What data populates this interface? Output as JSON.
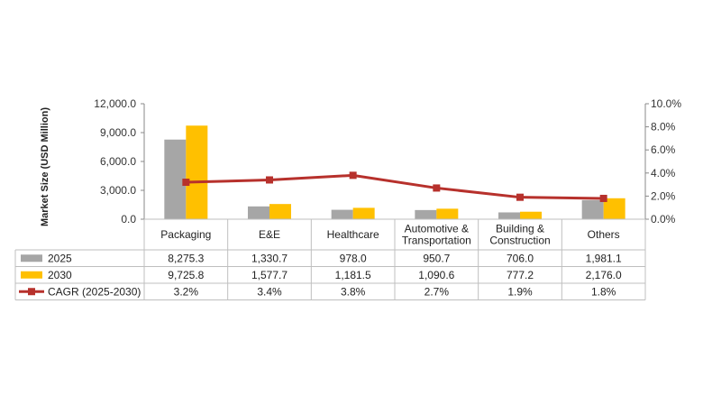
{
  "chart_data": {
    "type": "bar",
    "ylabel": "Market Size (USD Million)",
    "categories": [
      [
        "Packaging"
      ],
      [
        "E&E"
      ],
      [
        "Healthcare"
      ],
      [
        "Automotive &",
        "Transportation"
      ],
      [
        "Building &",
        "Construction"
      ],
      [
        "Others"
      ]
    ],
    "ylim": [
      0,
      12000
    ],
    "y_ticks": [
      "0.0",
      "3,000.0",
      "6,000.0",
      "9,000.0",
      "12,000.0"
    ],
    "y2lim": [
      0,
      10
    ],
    "y2_ticks": [
      "0.0%",
      "2.0%",
      "4.0%",
      "6.0%",
      "8.0%",
      "10.0%"
    ],
    "series": [
      {
        "name": "2025",
        "type": "bar",
        "color": "#a6a6a6",
        "values": [
          8275.3,
          1330.7,
          978.0,
          950.7,
          706.0,
          1981.1
        ],
        "labels": [
          "8,275.3",
          "1,330.7",
          "978.0",
          "950.7",
          "706.0",
          "1,981.1"
        ]
      },
      {
        "name": "2030",
        "type": "bar",
        "color": "#ffc000",
        "values": [
          9725.8,
          1577.7,
          1181.5,
          1090.6,
          777.2,
          2176.0
        ],
        "labels": [
          "9,725.8",
          "1,577.7",
          "1,181.5",
          "1,090.6",
          "777.2",
          "2,176.0"
        ]
      },
      {
        "name": "CAGR (2025-2030)",
        "type": "line",
        "axis": "secondary",
        "color": "#b7312c",
        "values": [
          3.2,
          3.4,
          3.8,
          2.7,
          1.9,
          1.8
        ],
        "labels": [
          "3.2%",
          "3.4%",
          "3.8%",
          "2.7%",
          "1.9%",
          "1.8%"
        ]
      }
    ],
    "grid": false,
    "legend": "data-table"
  }
}
